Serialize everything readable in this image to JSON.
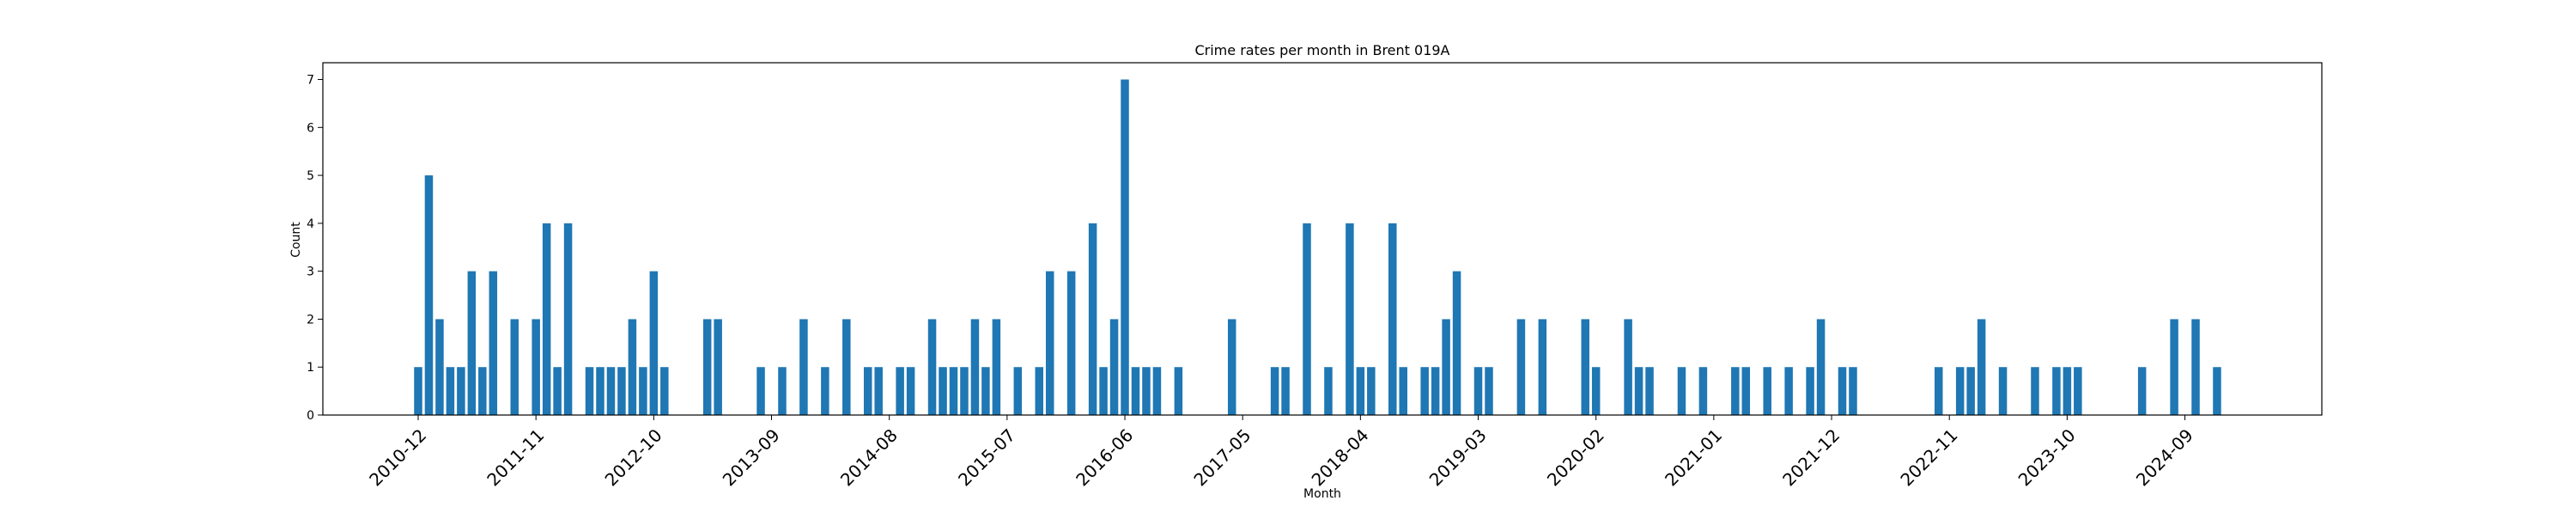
{
  "chart_data": {
    "type": "bar",
    "title": "Crime rates per month in Brent 019A",
    "xlabel": "Month",
    "ylabel": "Count",
    "ylim": [
      0,
      7.35
    ],
    "y_ticks": [
      0,
      1,
      2,
      3,
      4,
      5,
      6,
      7
    ],
    "x_tick_labels": [
      "2010-12",
      "2011-11",
      "2012-10",
      "2013-09",
      "2014-08",
      "2015-07",
      "2016-06",
      "2017-05",
      "2018-04",
      "2019-03",
      "2020-02",
      "2021-01",
      "2021-12",
      "2022-11",
      "2023-10",
      "2024-09"
    ],
    "grid": false,
    "bar_color": "#1f77b4",
    "series": [
      {
        "x": [
          "2010-12",
          "2011-01",
          "2011-02",
          "2011-03",
          "2011-04",
          "2011-05",
          "2011-06",
          "2011-07",
          "2011-09",
          "2011-11",
          "2011-12",
          "2012-01",
          "2012-02",
          "2012-04",
          "2012-05",
          "2012-06",
          "2012-07",
          "2012-08",
          "2012-09",
          "2012-10",
          "2012-11",
          "2013-03",
          "2013-04",
          "2013-08",
          "2013-10",
          "2013-12",
          "2014-02",
          "2014-04",
          "2014-06",
          "2014-07",
          "2014-09",
          "2014-10",
          "2014-12",
          "2015-01",
          "2015-02",
          "2015-03",
          "2015-04",
          "2015-05",
          "2015-06",
          "2015-08",
          "2015-10",
          "2015-11",
          "2016-01",
          "2016-03",
          "2016-04",
          "2016-05",
          "2016-06",
          "2016-07",
          "2016-08",
          "2016-09",
          "2016-11",
          "2017-04",
          "2017-08",
          "2017-09",
          "2017-11",
          "2018-01",
          "2018-03",
          "2018-04",
          "2018-05",
          "2018-07",
          "2018-08",
          "2018-10",
          "2018-11",
          "2018-12",
          "2019-01",
          "2019-03",
          "2019-04",
          "2019-07",
          "2019-09",
          "2020-01",
          "2020-02",
          "2020-05",
          "2020-06",
          "2020-07",
          "2020-10",
          "2020-12",
          "2021-03",
          "2021-04",
          "2021-06",
          "2021-08",
          "2021-10",
          "2021-11",
          "2022-01",
          "2022-02",
          "2022-10",
          "2022-12",
          "2023-01",
          "2023-02",
          "2023-04",
          "2023-07",
          "2023-09",
          "2023-10",
          "2023-11",
          "2024-05",
          "2024-08",
          "2024-10",
          "2024-12"
        ],
        "values": [
          1,
          5,
          2,
          1,
          1,
          3,
          1,
          3,
          2,
          2,
          4,
          1,
          4,
          1,
          1,
          1,
          1,
          2,
          1,
          3,
          1,
          2,
          2,
          1,
          1,
          2,
          1,
          2,
          1,
          1,
          1,
          1,
          2,
          1,
          1,
          1,
          2,
          1,
          2,
          1,
          1,
          3,
          3,
          4,
          1,
          2,
          7,
          1,
          1,
          1,
          1,
          2,
          1,
          1,
          4,
          1,
          4,
          1,
          1,
          4,
          1,
          1,
          1,
          2,
          3,
          1,
          1,
          2,
          2,
          2,
          1,
          2,
          1,
          1,
          1,
          1,
          1,
          1,
          1,
          1,
          1,
          2,
          1,
          1,
          1,
          1,
          1,
          2,
          1,
          1,
          1,
          1,
          1,
          1,
          2,
          2,
          1
        ]
      }
    ]
  }
}
